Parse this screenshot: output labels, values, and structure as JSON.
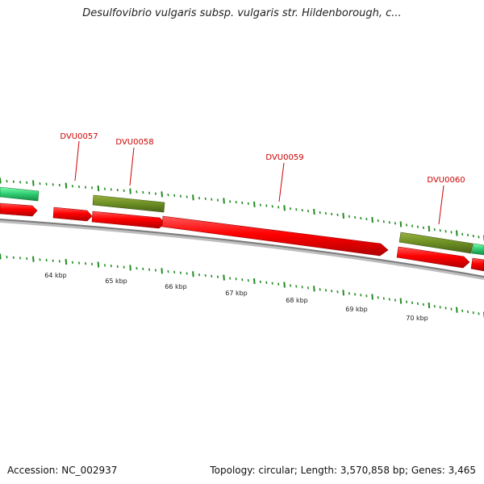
{
  "title": "Desulfovibrio vulgaris subsp. vulgaris str. Hildenborough, c...",
  "genes": [
    "DVU0057",
    "DVU0058",
    "DVU0059",
    "DVU0060"
  ],
  "scale_labels": [
    "64 kbp",
    "65 kbp",
    "66 kbp",
    "67 kbp",
    "68 kbp",
    "69 kbp",
    "70 kbp"
  ],
  "footer": {
    "accession": "Accession: NC_002937",
    "summary": "Topology: circular; Length: 3,570,858 bp; Genes: 3,465"
  },
  "colors": {
    "cds": "#ff0000",
    "gene": "#6b8e23",
    "other_feature": "#2ecc71",
    "backbone": "#808080",
    "gc_ticks": "#228b22",
    "gene_labels": "#cc0000"
  }
}
